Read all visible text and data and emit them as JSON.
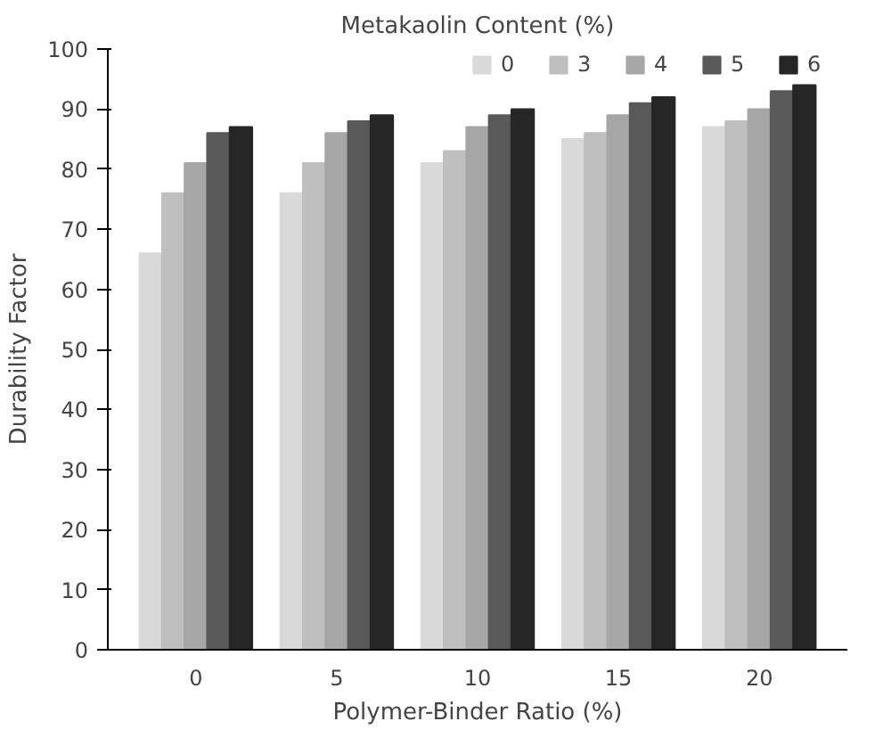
{
  "chart_data": {
    "type": "bar",
    "legend_title": "Metakaolin Content (%)",
    "xlabel": "Polymer-Binder Ratio (%)",
    "ylabel": "Durability Factor",
    "categories": [
      "0",
      "5",
      "10",
      "15",
      "20"
    ],
    "series": [
      {
        "name": "0",
        "color": "#d9d9d9",
        "values": [
          66,
          76,
          81,
          85,
          87
        ]
      },
      {
        "name": "3",
        "color": "#bfbfbf",
        "values": [
          76,
          81,
          83,
          86,
          88
        ]
      },
      {
        "name": "4",
        "color": "#a6a6a6",
        "values": [
          81,
          86,
          87,
          89,
          90
        ]
      },
      {
        "name": "5",
        "color": "#595959",
        "values": [
          86,
          88,
          89,
          91,
          93
        ]
      },
      {
        "name": "6",
        "color": "#262626",
        "values": [
          87,
          89,
          90,
          92,
          94
        ]
      }
    ],
    "ylim": [
      0,
      100
    ],
    "yticks": [
      0,
      10,
      20,
      30,
      40,
      50,
      60,
      70,
      80,
      90,
      100
    ],
    "grid": false,
    "legend": "top"
  }
}
